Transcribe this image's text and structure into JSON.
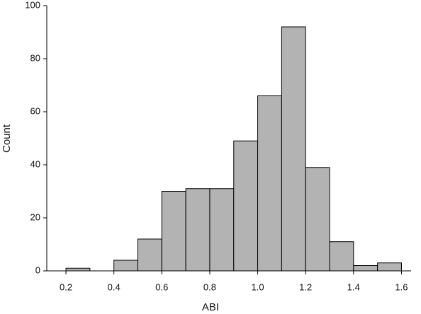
{
  "chart_data": {
    "type": "histogram",
    "x_label": "ABI",
    "y_label": "Count",
    "bins": [
      0.2,
      0.3,
      0.4,
      0.5,
      0.6,
      0.7,
      0.8,
      0.9,
      1.0,
      1.1,
      1.2,
      1.3,
      1.4,
      1.5,
      1.6
    ],
    "values": [
      1,
      0,
      4,
      12,
      30,
      31,
      31,
      49,
      66,
      92,
      39,
      11,
      2,
      3
    ],
    "color": "#b3b3b3",
    "xlim": [
      0.12,
      1.64
    ],
    "xticks": [
      0.2,
      0.4,
      0.6,
      0.8,
      {
        "value": 1,
        "label": "1.0"
      },
      1.2,
      1.4,
      1.6
    ],
    "ylim": [
      0,
      100
    ],
    "yticks": [
      0,
      20,
      40,
      60,
      80,
      100
    ],
    "grid": false
  }
}
